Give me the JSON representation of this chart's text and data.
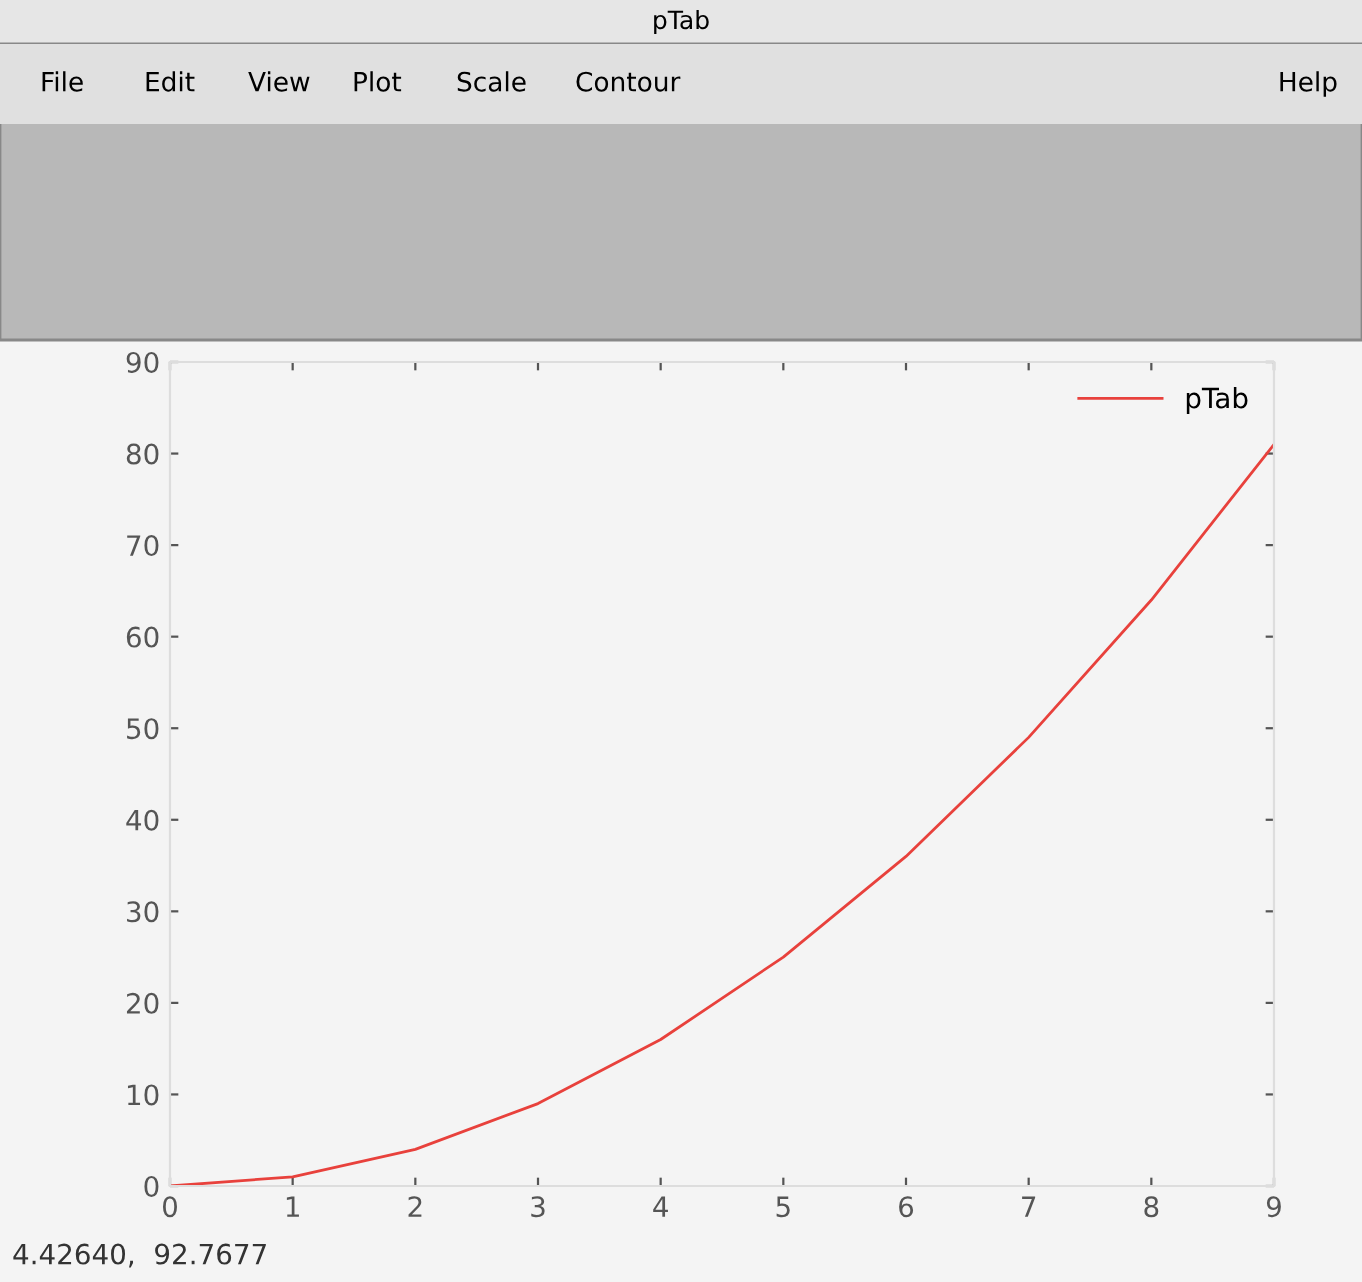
{
  "chart_data": {
    "type": "line",
    "title": "pTab",
    "x": [
      0,
      1,
      2,
      3,
      4,
      5,
      6,
      7,
      8,
      9
    ],
    "series": [
      {
        "name": "pTab",
        "color": "#e8413c",
        "values": [
          0,
          1,
          4,
          9,
          16,
          25,
          36,
          49,
          64,
          81
        ]
      }
    ],
    "xlim": [
      0,
      9
    ],
    "xticks": [
      0,
      1,
      2,
      3,
      4,
      5,
      6,
      7,
      8,
      9
    ],
    "ylim": [
      0,
      90
    ],
    "yticks": [
      0,
      10,
      20,
      30,
      40,
      50,
      60,
      70,
      80,
      90
    ],
    "grid": false,
    "legend": "top right",
    "marker": "none",
    "line_style": "solid",
    "annotations": [
      "File",
      "Edit",
      "View",
      "Plot",
      "Scale",
      "Contour",
      "Help",
      "4.42640,  92.7677"
    ]
  }
}
